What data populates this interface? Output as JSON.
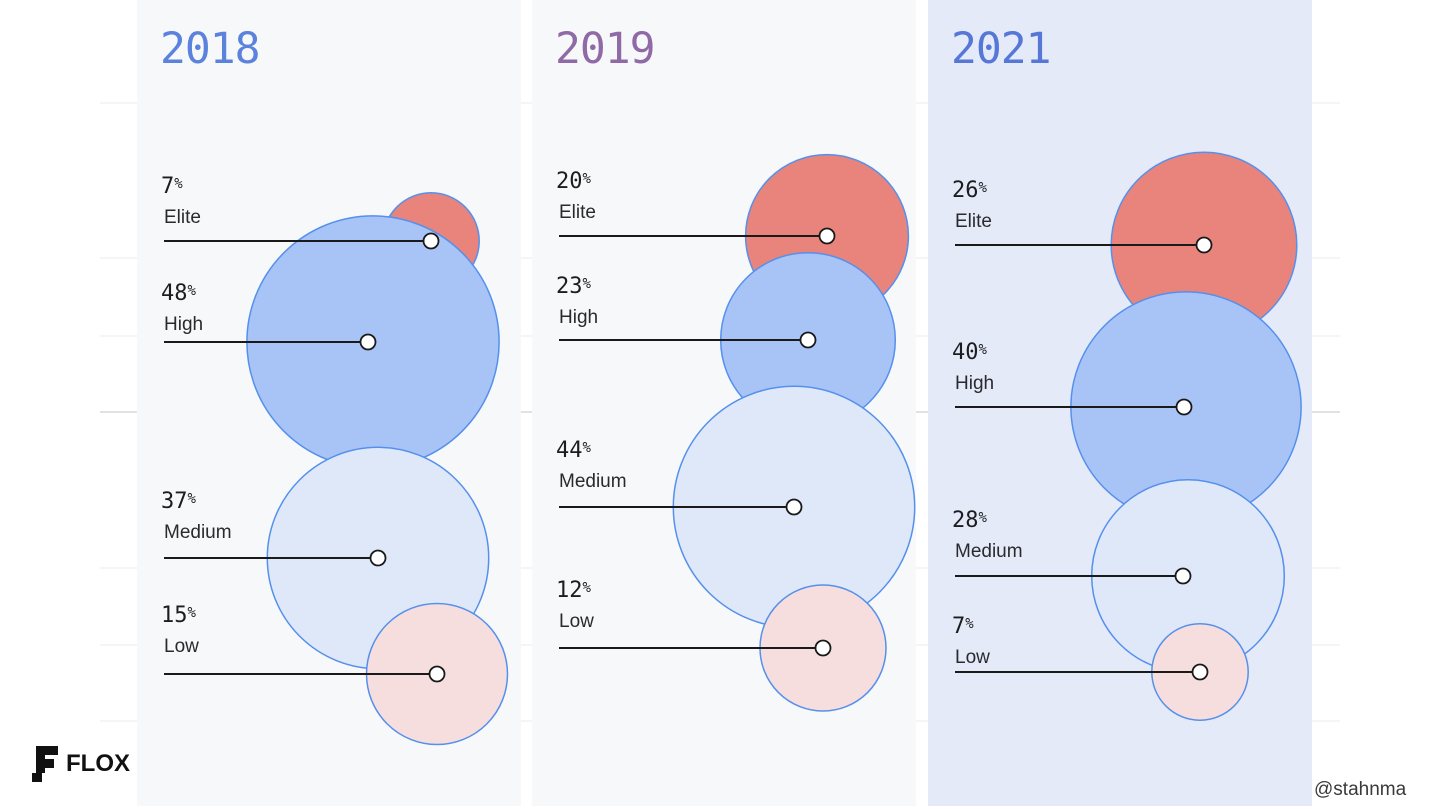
{
  "chart_data": {
    "type": "bubble",
    "title": "",
    "panels": [
      {
        "year": "2018",
        "series": [
          {
            "name": "Elite",
            "value": 7,
            "label": "7"
          },
          {
            "name": "High",
            "value": 48,
            "label": "48"
          },
          {
            "name": "Medium",
            "value": 37,
            "label": "37"
          },
          {
            "name": "Low",
            "value": 15,
            "label": "15"
          }
        ]
      },
      {
        "year": "2019",
        "series": [
          {
            "name": "Elite",
            "value": 20,
            "label": "20"
          },
          {
            "name": "High",
            "value": 23,
            "label": "23"
          },
          {
            "name": "Medium",
            "value": 44,
            "label": "44"
          },
          {
            "name": "Low",
            "value": 12,
            "label": "12"
          }
        ]
      },
      {
        "year": "2021",
        "series": [
          {
            "name": "Elite",
            "value": 26,
            "label": "26"
          },
          {
            "name": "High",
            "value": 40,
            "label": "40"
          },
          {
            "name": "Medium",
            "value": 28,
            "label": "28"
          },
          {
            "name": "Low",
            "value": 7,
            "label": "7"
          }
        ]
      }
    ],
    "percent_sign": "%",
    "colors": {
      "Elite": "#e8847c",
      "High": "#a8c4f6",
      "Medium": "#dfe8f9",
      "Low": "#f7dede",
      "stroke": "#5590ec",
      "leader": "#1a1a1a"
    }
  },
  "branding": {
    "logo_text": "FLOX",
    "handle": "@stahnma"
  }
}
